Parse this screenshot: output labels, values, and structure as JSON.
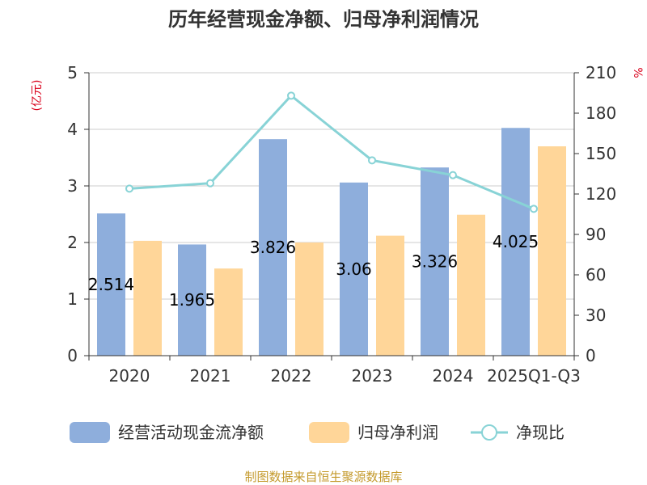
{
  "chart_data": {
    "type": "bar",
    "title": "历年经营现金净额、归母净利润情况",
    "categories": [
      "2020",
      "2021",
      "2022",
      "2023",
      "2024",
      "2025Q1-Q3"
    ],
    "left_unit": "(亿元)",
    "right_unit": "%",
    "ylim": [
      0,
      5
    ],
    "ylim_right": [
      0,
      210
    ],
    "yticks": [
      "0",
      "1",
      "2",
      "3",
      "4",
      "5"
    ],
    "yticks_right": [
      "0",
      "30",
      "60",
      "90",
      "120",
      "150",
      "180",
      "210"
    ],
    "grid": true,
    "legend_position": "bottom",
    "series": [
      {
        "name": "经营活动现金流净额",
        "type": "bar",
        "axis": "left",
        "color": "#8eaedc",
        "values": [
          2.514,
          1.965,
          3.826,
          3.06,
          3.326,
          4.025
        ],
        "labels": [
          "2.514",
          "1.965",
          "3.826",
          "3.06",
          "3.326",
          "4.025"
        ]
      },
      {
        "name": "归母净利润",
        "type": "bar",
        "axis": "left",
        "color": "#ffd699",
        "values": [
          2.03,
          1.54,
          2.0,
          2.12,
          2.49,
          3.7
        ]
      },
      {
        "name": "净现比",
        "type": "line",
        "axis": "right",
        "color": "#88d3d6",
        "values": [
          124,
          128,
          193,
          145,
          134,
          109
        ]
      }
    ]
  },
  "source_text": "制图数据来自恒生聚源数据库"
}
